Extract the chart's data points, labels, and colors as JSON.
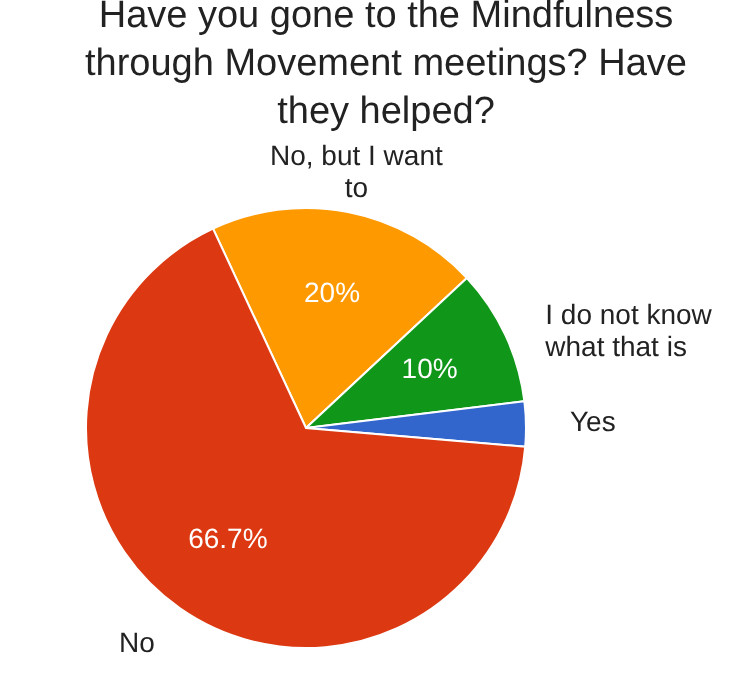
{
  "chart_data": {
    "type": "pie",
    "title": "Have you gone to the Mindfulness through Movement meetings? Have they helped?",
    "categories": [
      "No, but I want to",
      "I do not know what that is",
      "Yes",
      "No"
    ],
    "values": [
      20,
      10,
      3.3,
      66.7
    ],
    "colors": [
      "#ff9900",
      "#109618",
      "#3366cc",
      "#dc3912"
    ],
    "value_labels": [
      "20%",
      "10%",
      null,
      "66.7%"
    ]
  }
}
